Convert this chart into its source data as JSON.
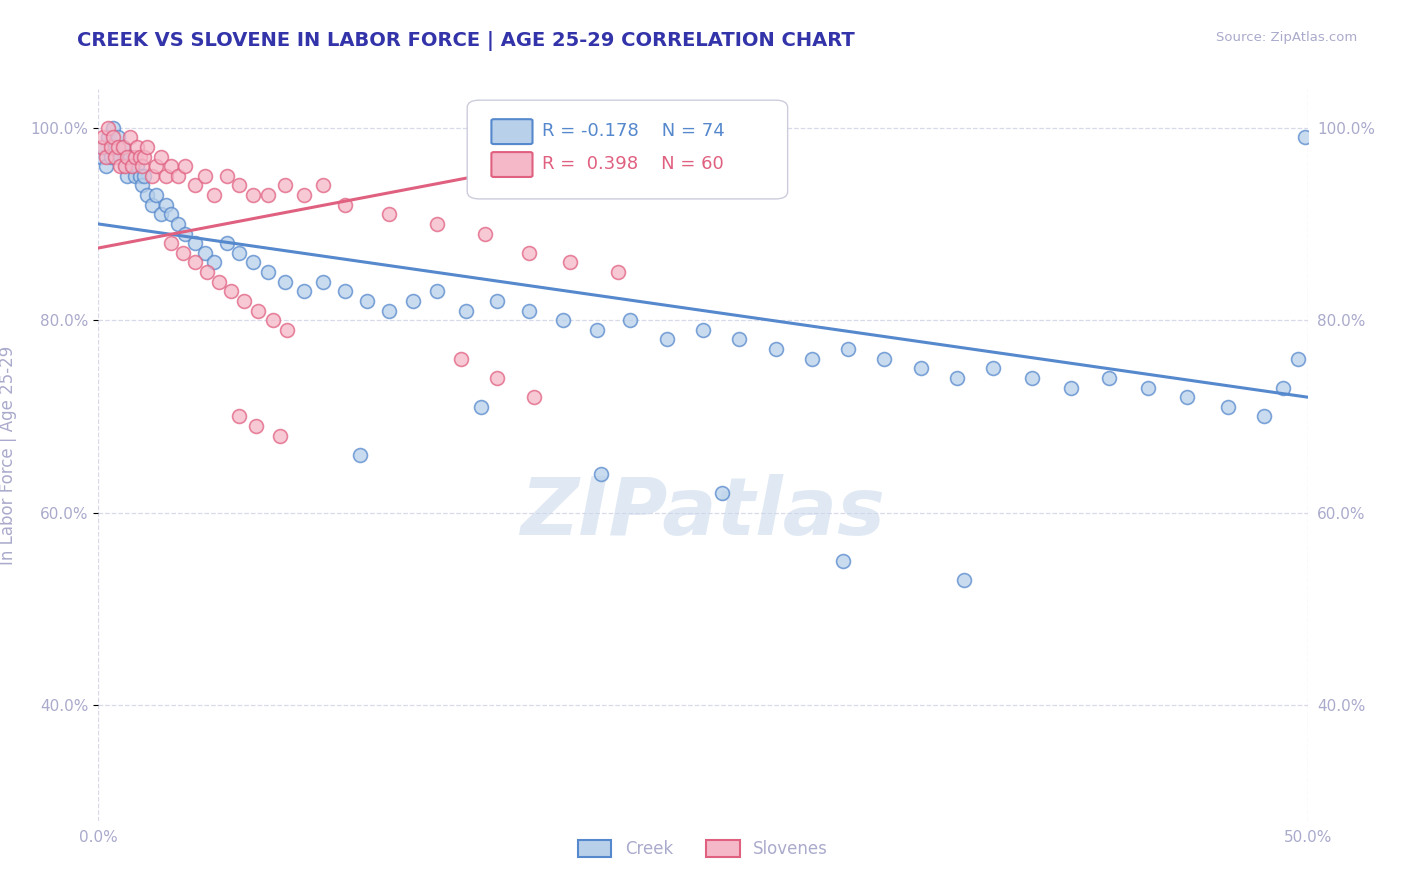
{
  "title": "CREEK VS SLOVENE IN LABOR FORCE | AGE 25-29 CORRELATION CHART",
  "source": "Source: ZipAtlas.com",
  "ylabel": "In Labor Force | Age 25-29",
  "xlim": [
    0.0,
    0.5
  ],
  "ylim": [
    0.28,
    1.04
  ],
  "yticks": [
    0.4,
    0.6,
    0.8,
    1.0
  ],
  "yticklabels": [
    "40.0%",
    "60.0%",
    "80.0%",
    "100.0%"
  ],
  "grid_color": "#d8daea",
  "background_color": "#ffffff",
  "title_color": "#3333aa",
  "axis_color": "#aaaacc",
  "watermark": "ZIPatlas",
  "legend_R_blue": "-0.178",
  "legend_N_blue": "74",
  "legend_R_pink": "0.398",
  "legend_N_pink": "60",
  "blue_color": "#b8d0ea",
  "blue_edge_color": "#5588cc",
  "pink_color": "#f5b8c8",
  "pink_edge_color": "#e06080",
  "scatter_alpha": 0.75,
  "scatter_size": 100,
  "creek_x": [
    0.001,
    0.002,
    0.003,
    0.004,
    0.005,
    0.006,
    0.007,
    0.008,
    0.009,
    0.01,
    0.011,
    0.012,
    0.013,
    0.014,
    0.015,
    0.016,
    0.017,
    0.018,
    0.019,
    0.02,
    0.022,
    0.024,
    0.026,
    0.028,
    0.03,
    0.033,
    0.036,
    0.04,
    0.044,
    0.048,
    0.053,
    0.058,
    0.064,
    0.07,
    0.077,
    0.085,
    0.093,
    0.102,
    0.111,
    0.12,
    0.13,
    0.14,
    0.152,
    0.165,
    0.178,
    0.192,
    0.206,
    0.22,
    0.235,
    0.25,
    0.265,
    0.28,
    0.295,
    0.31,
    0.325,
    0.34,
    0.355,
    0.37,
    0.386,
    0.402,
    0.418,
    0.434,
    0.45,
    0.467,
    0.482,
    0.49,
    0.496,
    0.499,
    0.108,
    0.158,
    0.208,
    0.258,
    0.308,
    0.358
  ],
  "creek_y": [
    0.97,
    0.98,
    0.96,
    0.99,
    0.97,
    1.0,
    0.98,
    0.99,
    0.97,
    0.98,
    0.96,
    0.95,
    0.97,
    0.96,
    0.95,
    0.96,
    0.95,
    0.94,
    0.95,
    0.93,
    0.92,
    0.93,
    0.91,
    0.92,
    0.91,
    0.9,
    0.89,
    0.88,
    0.87,
    0.86,
    0.88,
    0.87,
    0.86,
    0.85,
    0.84,
    0.83,
    0.84,
    0.83,
    0.82,
    0.81,
    0.82,
    0.83,
    0.81,
    0.82,
    0.81,
    0.8,
    0.79,
    0.8,
    0.78,
    0.79,
    0.78,
    0.77,
    0.76,
    0.77,
    0.76,
    0.75,
    0.74,
    0.75,
    0.74,
    0.73,
    0.74,
    0.73,
    0.72,
    0.71,
    0.7,
    0.73,
    0.76,
    0.99,
    0.66,
    0.71,
    0.64,
    0.62,
    0.55,
    0.53
  ],
  "slovene_x": [
    0.001,
    0.002,
    0.003,
    0.004,
    0.005,
    0.006,
    0.007,
    0.008,
    0.009,
    0.01,
    0.011,
    0.012,
    0.013,
    0.014,
    0.015,
    0.016,
    0.017,
    0.018,
    0.019,
    0.02,
    0.022,
    0.024,
    0.026,
    0.028,
    0.03,
    0.033,
    0.036,
    0.04,
    0.044,
    0.048,
    0.053,
    0.058,
    0.064,
    0.07,
    0.077,
    0.085,
    0.093,
    0.102,
    0.12,
    0.14,
    0.16,
    0.178,
    0.195,
    0.215,
    0.15,
    0.165,
    0.18,
    0.058,
    0.065,
    0.075,
    0.03,
    0.035,
    0.04,
    0.045,
    0.05,
    0.055,
    0.06,
    0.066,
    0.072,
    0.078
  ],
  "slovene_y": [
    0.98,
    0.99,
    0.97,
    1.0,
    0.98,
    0.99,
    0.97,
    0.98,
    0.96,
    0.98,
    0.96,
    0.97,
    0.99,
    0.96,
    0.97,
    0.98,
    0.97,
    0.96,
    0.97,
    0.98,
    0.95,
    0.96,
    0.97,
    0.95,
    0.96,
    0.95,
    0.96,
    0.94,
    0.95,
    0.93,
    0.95,
    0.94,
    0.93,
    0.93,
    0.94,
    0.93,
    0.94,
    0.92,
    0.91,
    0.9,
    0.89,
    0.87,
    0.86,
    0.85,
    0.76,
    0.74,
    0.72,
    0.7,
    0.69,
    0.68,
    0.88,
    0.87,
    0.86,
    0.85,
    0.84,
    0.83,
    0.82,
    0.81,
    0.8,
    0.79
  ],
  "blue_trend_x": [
    0.0,
    0.5
  ],
  "blue_trend_y": [
    0.9,
    0.72
  ],
  "pink_trend_x": [
    0.0,
    0.22
  ],
  "pink_trend_y": [
    0.875,
    0.98
  ]
}
